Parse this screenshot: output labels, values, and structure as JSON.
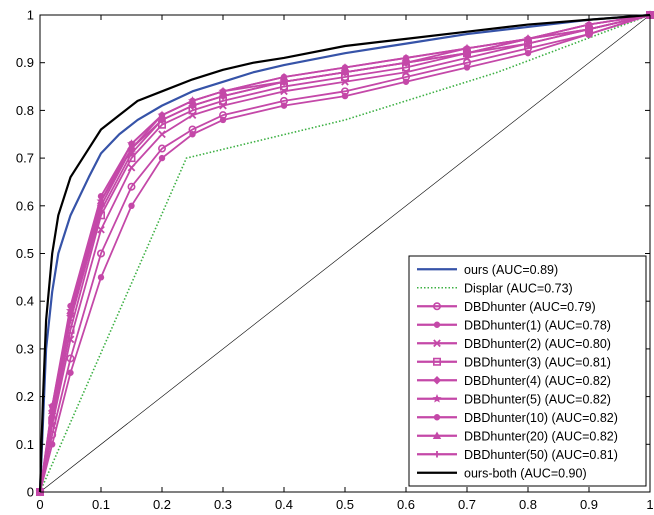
{
  "chart_data": {
    "type": "line",
    "title": "",
    "xlabel": "",
    "ylabel": "",
    "xlim": [
      0,
      1
    ],
    "ylim": [
      0,
      1
    ],
    "x_ticks": [
      "0",
      "0.1",
      "0.2",
      "0.3",
      "0.4",
      "0.5",
      "0.6",
      "0.7",
      "0.8",
      "0.9",
      "1"
    ],
    "y_ticks": [
      "0",
      "0.1",
      "0.2",
      "0.3",
      "0.4",
      "0.5",
      "0.6",
      "0.7",
      "0.8",
      "0.9",
      "1"
    ],
    "grid": false,
    "legend_position": "bottom-right",
    "diagonal": {
      "x": [
        0,
        1
      ],
      "y": [
        0,
        1
      ],
      "color": "#000000"
    },
    "series": [
      {
        "name": "ours (AUC=0.89)",
        "color": "#3653a8",
        "style": "solid",
        "marker": "none",
        "x": [
          0,
          0.005,
          0.01,
          0.02,
          0.03,
          0.05,
          0.08,
          0.1,
          0.13,
          0.16,
          0.2,
          0.25,
          0.3,
          0.35,
          0.4,
          0.5,
          0.6,
          0.7,
          0.8,
          0.9,
          1
        ],
        "y": [
          0,
          0.15,
          0.3,
          0.42,
          0.5,
          0.58,
          0.66,
          0.71,
          0.75,
          0.78,
          0.81,
          0.84,
          0.86,
          0.88,
          0.895,
          0.92,
          0.94,
          0.96,
          0.975,
          0.99,
          1
        ]
      },
      {
        "name": "Displar (AUC=0.73)",
        "color": "#3cb043",
        "style": "dotted",
        "marker": "none",
        "x": [
          0,
          0.24,
          0.5,
          0.75,
          1
        ],
        "y": [
          0,
          0.7,
          0.78,
          0.88,
          1
        ]
      },
      {
        "name": "DBDhunter (AUC=0.79)",
        "color": "#c448a8",
        "style": "solid",
        "marker": "circle",
        "x": [
          0,
          0.02,
          0.05,
          0.1,
          0.15,
          0.2,
          0.25,
          0.3,
          0.4,
          0.5,
          0.6,
          0.7,
          0.8,
          0.9,
          1
        ],
        "y": [
          0,
          0.12,
          0.28,
          0.5,
          0.64,
          0.72,
          0.76,
          0.79,
          0.82,
          0.84,
          0.87,
          0.9,
          0.93,
          0.96,
          1
        ]
      },
      {
        "name": "DBDhunter(1) (AUC=0.78)",
        "color": "#c448a8",
        "style": "solid",
        "marker": "hexagram",
        "x": [
          0,
          0.02,
          0.05,
          0.1,
          0.15,
          0.2,
          0.25,
          0.3,
          0.4,
          0.5,
          0.6,
          0.7,
          0.8,
          0.9,
          1
        ],
        "y": [
          0,
          0.1,
          0.25,
          0.45,
          0.6,
          0.7,
          0.75,
          0.78,
          0.81,
          0.83,
          0.86,
          0.89,
          0.92,
          0.96,
          1
        ]
      },
      {
        "name": "DBDhunter(2) (AUC=0.80)",
        "color": "#c448a8",
        "style": "solid",
        "marker": "x",
        "x": [
          0,
          0.02,
          0.05,
          0.1,
          0.15,
          0.2,
          0.25,
          0.3,
          0.4,
          0.5,
          0.6,
          0.7,
          0.8,
          0.9,
          1
        ],
        "y": [
          0,
          0.14,
          0.32,
          0.55,
          0.68,
          0.75,
          0.79,
          0.81,
          0.84,
          0.86,
          0.88,
          0.91,
          0.94,
          0.97,
          1
        ]
      },
      {
        "name": "DBDhunter(3) (AUC=0.81)",
        "color": "#c448a8",
        "style": "solid",
        "marker": "square",
        "x": [
          0,
          0.02,
          0.05,
          0.1,
          0.15,
          0.2,
          0.25,
          0.3,
          0.4,
          0.5,
          0.6,
          0.7,
          0.8,
          0.9,
          1
        ],
        "y": [
          0,
          0.15,
          0.34,
          0.58,
          0.7,
          0.77,
          0.8,
          0.82,
          0.85,
          0.87,
          0.89,
          0.92,
          0.94,
          0.97,
          1
        ]
      },
      {
        "name": "DBDhunter(4) (AUC=0.82)",
        "color": "#c448a8",
        "style": "solid",
        "marker": "diamond",
        "x": [
          0,
          0.02,
          0.05,
          0.1,
          0.15,
          0.2,
          0.25,
          0.3,
          0.4,
          0.5,
          0.6,
          0.7,
          0.8,
          0.9,
          1
        ],
        "y": [
          0,
          0.17,
          0.37,
          0.6,
          0.72,
          0.78,
          0.81,
          0.83,
          0.86,
          0.88,
          0.9,
          0.92,
          0.95,
          0.97,
          1
        ]
      },
      {
        "name": "DBDhunter(5) (AUC=0.82)",
        "color": "#c448a8",
        "style": "solid",
        "marker": "star",
        "x": [
          0,
          0.02,
          0.05,
          0.1,
          0.15,
          0.2,
          0.25,
          0.3,
          0.4,
          0.5,
          0.6,
          0.7,
          0.8,
          0.9,
          1
        ],
        "y": [
          0,
          0.18,
          0.38,
          0.61,
          0.73,
          0.79,
          0.82,
          0.84,
          0.86,
          0.88,
          0.9,
          0.93,
          0.95,
          0.98,
          1
        ]
      },
      {
        "name": "DBDhunter(10) (AUC=0.82)",
        "color": "#c448a8",
        "style": "solid",
        "marker": "dot",
        "x": [
          0,
          0.02,
          0.05,
          0.1,
          0.15,
          0.2,
          0.25,
          0.3,
          0.4,
          0.5,
          0.6,
          0.7,
          0.8,
          0.9,
          1
        ],
        "y": [
          0,
          0.18,
          0.39,
          0.62,
          0.73,
          0.79,
          0.82,
          0.84,
          0.87,
          0.89,
          0.91,
          0.93,
          0.95,
          0.98,
          1
        ]
      },
      {
        "name": "DBDhunter(20) (AUC=0.82)",
        "color": "#c448a8",
        "style": "solid",
        "marker": "triangle",
        "x": [
          0,
          0.02,
          0.05,
          0.1,
          0.15,
          0.2,
          0.25,
          0.3,
          0.4,
          0.5,
          0.6,
          0.7,
          0.8,
          0.9,
          1
        ],
        "y": [
          0,
          0.17,
          0.38,
          0.61,
          0.72,
          0.79,
          0.82,
          0.84,
          0.87,
          0.89,
          0.91,
          0.93,
          0.95,
          0.98,
          1
        ]
      },
      {
        "name": "DBDhunter(50) (AUC=0.81)",
        "color": "#c448a8",
        "style": "solid",
        "marker": "plus",
        "x": [
          0,
          0.02,
          0.05,
          0.1,
          0.15,
          0.2,
          0.25,
          0.3,
          0.4,
          0.5,
          0.6,
          0.7,
          0.8,
          0.9,
          1
        ],
        "y": [
          0,
          0.16,
          0.36,
          0.59,
          0.71,
          0.78,
          0.81,
          0.83,
          0.86,
          0.88,
          0.9,
          0.92,
          0.95,
          0.97,
          1
        ]
      },
      {
        "name": "ours-both (AUC=0.90)",
        "color": "#000000",
        "style": "solid",
        "marker": "none",
        "x": [
          0,
          0.005,
          0.01,
          0.02,
          0.03,
          0.05,
          0.08,
          0.1,
          0.13,
          0.16,
          0.2,
          0.25,
          0.3,
          0.35,
          0.4,
          0.5,
          0.6,
          0.7,
          0.8,
          0.9,
          1
        ],
        "y": [
          0,
          0.2,
          0.36,
          0.5,
          0.58,
          0.66,
          0.72,
          0.76,
          0.79,
          0.82,
          0.84,
          0.865,
          0.885,
          0.9,
          0.91,
          0.935,
          0.95,
          0.965,
          0.98,
          0.99,
          1
        ]
      }
    ]
  }
}
